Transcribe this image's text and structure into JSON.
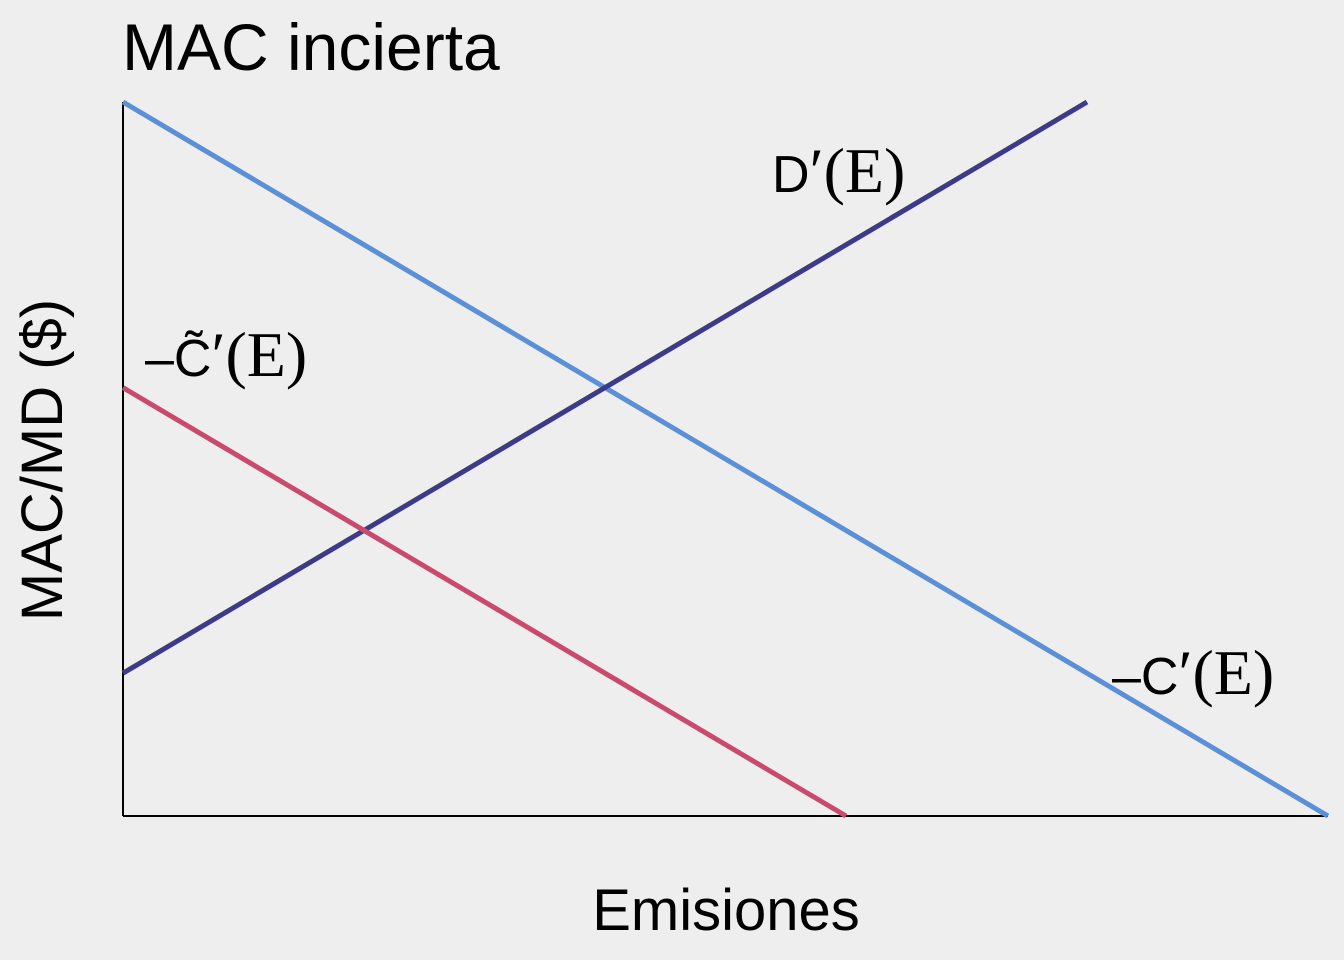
{
  "chart_data": {
    "type": "line",
    "title": "MAC incierta",
    "xlabel": "Emisiones",
    "ylabel": "MAC/MD ($)",
    "xlim": [
      0,
      100
    ],
    "ylim": [
      0,
      100
    ],
    "grid": false,
    "series": [
      {
        "name": "−C′(E)",
        "color": "#5b8fd6",
        "x": [
          0,
          100
        ],
        "y": [
          100,
          0
        ]
      },
      {
        "name": "D′(E)",
        "color": "#3d3a8a",
        "x": [
          0,
          80
        ],
        "y": [
          20,
          100
        ]
      },
      {
        "name": "−C̃′(E)",
        "color": "#c94a6e",
        "x": [
          0,
          60
        ],
        "y": [
          60,
          0
        ]
      }
    ],
    "annotations": [
      {
        "series": "D′(E)",
        "prefix": "",
        "letter": "D",
        "suffix": "′(E)"
      },
      {
        "series": "−C̃′(E)",
        "prefix": "–",
        "letter": "C̃",
        "suffix": "′(E)"
      },
      {
        "series": "−C′(E)",
        "prefix": "–",
        "letter": "C",
        "suffix": "′(E)"
      }
    ]
  }
}
